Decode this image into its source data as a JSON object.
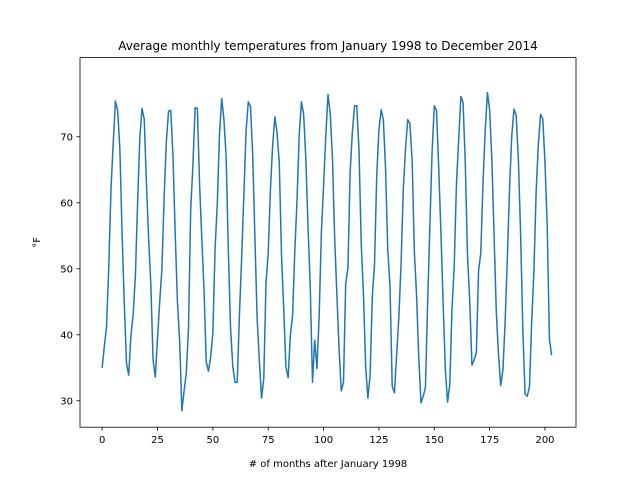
{
  "chart_data": {
    "type": "line",
    "title": "Average monthly temperatures from January 1998 to December 2014",
    "xlabel": "# of months after January 1998",
    "ylabel": "°F",
    "xlim": [
      -10,
      214
    ],
    "ylim": [
      26,
      82
    ],
    "xticks": [
      0,
      25,
      50,
      75,
      100,
      125,
      150,
      175,
      200
    ],
    "yticks": [
      30,
      40,
      50,
      60,
      70
    ],
    "grid": false,
    "series_color": "#1f77b4",
    "series": [
      {
        "values": [
          35.0,
          38.3,
          41.3,
          50.5,
          62.1,
          69.0,
          75.4,
          74.0,
          68.2,
          55.4,
          44.7,
          35.7,
          33.9,
          39.9,
          43.0,
          48.8,
          59.9,
          69.7,
          74.3,
          72.7,
          63.0,
          54.6,
          47.5,
          36.2,
          33.6,
          39.5,
          45.0,
          50.0,
          60.9,
          69.3,
          73.9,
          74.0,
          67.0,
          55.3,
          45.0,
          39.1,
          28.5,
          31.5,
          34.2,
          41.0,
          59.0,
          65.8,
          74.4,
          74.3,
          62.9,
          54.6,
          47.0,
          35.9,
          34.5,
          36.6,
          40.3,
          53.0,
          59.9,
          70.4,
          75.8,
          72.6,
          67.0,
          52.6,
          41.0,
          35.2,
          32.8,
          32.8,
          43.0,
          51.7,
          61.2,
          70.9,
          75.3,
          74.6,
          67.2,
          54.6,
          42.5,
          36.0,
          30.4,
          33.4,
          47.9,
          52.4,
          62.0,
          68.7,
          73.0,
          70.6,
          66.0,
          52.1,
          43.9,
          35.1,
          33.5,
          39.9,
          42.9,
          52.6,
          60.3,
          70.3,
          75.3,
          73.4,
          66.6,
          56.2,
          47.0,
          32.8,
          39.2,
          34.9,
          42.7,
          55.4,
          62.6,
          70.1,
          76.4,
          73.6,
          66.9,
          54.8,
          46.2,
          37.8,
          31.5,
          32.8,
          47.8,
          50.1,
          64.7,
          70.7,
          74.7,
          74.7,
          68.0,
          53.9,
          46.3,
          35.3,
          30.4,
          33.8,
          45.7,
          50.6,
          64.0,
          71.1,
          74.1,
          72.6,
          65.1,
          52.8,
          47.4,
          32.2,
          31.2,
          37.0,
          42.6,
          50.8,
          62.1,
          68.1,
          72.6,
          72.0,
          66.4,
          52.6,
          46.0,
          36.4,
          29.7,
          30.7,
          32.0,
          44.9,
          56.5,
          67.6,
          74.7,
          74.0,
          65.3,
          55.5,
          44.8,
          34.7,
          29.8,
          32.5,
          43.9,
          50.4,
          62.8,
          69.4,
          76.1,
          75.2,
          66.0,
          52.0,
          45.2,
          35.4,
          36.2,
          37.3,
          49.7,
          52.4,
          63.0,
          71.0,
          76.7,
          74.1,
          66.5,
          55.1,
          43.5,
          37.0,
          32.3,
          34.7,
          42.0,
          51.6,
          62.4,
          70.2,
          74.2,
          73.2,
          66.4,
          55.1,
          40.6,
          31.0,
          30.7,
          32.2,
          42.1,
          49.7,
          61.7,
          68.9,
          73.4,
          72.7,
          66.1,
          56.5,
          39.3,
          36.9
        ]
      }
    ]
  }
}
